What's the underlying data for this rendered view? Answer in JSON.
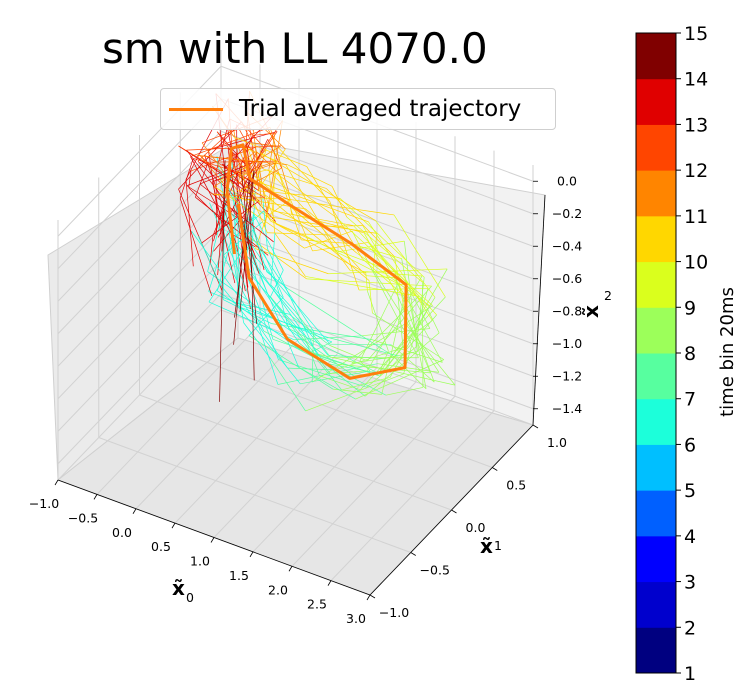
{
  "chart_data": {
    "type": "line",
    "projection": "3d",
    "title": "sm with LL 4070.0",
    "legend": {
      "entries": [
        "Trial averaged trajectory"
      ],
      "placement": "top-right"
    },
    "axes": {
      "x": {
        "label": "x̃0",
        "ticks": [
          "−1.0",
          "−0.5",
          "0.0",
          "0.5",
          "1.0",
          "1.5",
          "2.0",
          "2.5",
          "3.0"
        ],
        "range": [
          -1.0,
          3.0
        ]
      },
      "y": {
        "label": "x̃1",
        "ticks": [
          "−1.0",
          "−0.5",
          "0.0",
          "0.5",
          "1.0"
        ],
        "range": [
          -1.0,
          1.0
        ]
      },
      "z": {
        "label": "x̃2",
        "ticks": [
          "0.0",
          "−0.2",
          "−0.4",
          "−0.6",
          "−0.8",
          "−1.0",
          "−1.2",
          "−1.4"
        ],
        "range": [
          -1.5,
          0.1
        ]
      }
    },
    "colorbar": {
      "label": "time bin 20ms",
      "ticks": [
        "1",
        "2",
        "3",
        "4",
        "5",
        "6",
        "7",
        "8",
        "9",
        "10",
        "11",
        "12",
        "13",
        "14",
        "15"
      ],
      "colors": [
        "#000080",
        "#0000cd",
        "#0000ff",
        "#0060ff",
        "#00bfff",
        "#1cffda",
        "#57ff9f",
        "#9cff5a",
        "#daff1d",
        "#ffd700",
        "#ff8500",
        "#ff4500",
        "#e00000",
        "#800000"
      ]
    },
    "series": [
      {
        "name": "Trial averaged trajectory",
        "color": "#ff7f0e",
        "points": [
          [
            -0.2,
            0.4,
            -0.7
          ],
          [
            -0.4,
            0.5,
            -0.4
          ],
          [
            -0.45,
            0.6,
            -0.2
          ],
          [
            -0.3,
            0.6,
            -0.15
          ],
          [
            0.0,
            0.4,
            -0.2
          ],
          [
            0.6,
            0.3,
            -0.2
          ],
          [
            1.4,
            0.3,
            -0.3
          ],
          [
            2.0,
            0.4,
            -0.5
          ],
          [
            2.3,
            0.1,
            -0.8
          ],
          [
            1.8,
            -0.1,
            -0.85
          ],
          [
            1.0,
            -0.1,
            -0.75
          ],
          [
            0.3,
            0.1,
            -0.6
          ],
          [
            -0.1,
            0.35,
            -0.35
          ]
        ]
      }
    ]
  }
}
